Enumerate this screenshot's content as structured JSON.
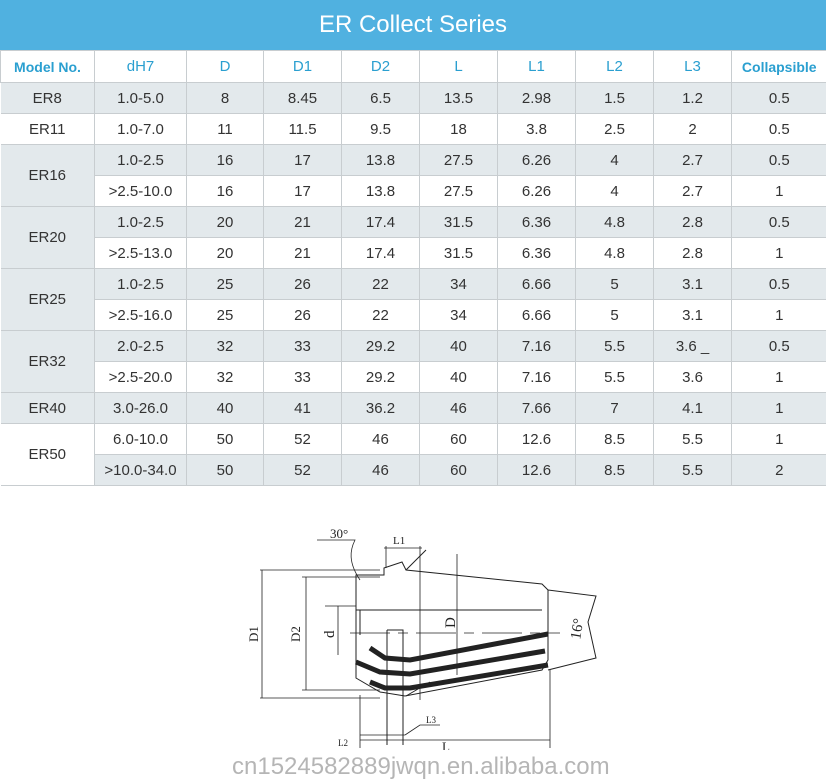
{
  "title": "ER Collect Series",
  "columns": [
    "Model No.",
    "dH7",
    "D",
    "D1",
    "D2",
    "L",
    "L1",
    "L2",
    "L3",
    "Collapsible"
  ],
  "groups": [
    {
      "model": "ER8",
      "rows": [
        [
          "1.0-5.0",
          "8",
          "8.45",
          "6.5",
          "13.5",
          "2.98",
          "1.5",
          "1.2",
          "0.5"
        ]
      ]
    },
    {
      "model": "ER11",
      "rows": [
        [
          "1.0-7.0",
          "11",
          "11.5",
          "9.5",
          "18",
          "3.8",
          "2.5",
          "2",
          "0.5"
        ]
      ]
    },
    {
      "model": "ER16",
      "rows": [
        [
          "1.0-2.5",
          "16",
          "17",
          "13.8",
          "27.5",
          "6.26",
          "4",
          "2.7",
          "0.5"
        ],
        [
          ">2.5-10.0",
          "16",
          "17",
          "13.8",
          "27.5",
          "6.26",
          "4",
          "2.7",
          "1"
        ]
      ]
    },
    {
      "model": "ER20",
      "rows": [
        [
          "1.0-2.5",
          "20",
          "21",
          "17.4",
          "31.5",
          "6.36",
          "4.8",
          "2.8",
          "0.5"
        ],
        [
          ">2.5-13.0",
          "20",
          "21",
          "17.4",
          "31.5",
          "6.36",
          "4.8",
          "2.8",
          "1"
        ]
      ]
    },
    {
      "model": "ER25",
      "rows": [
        [
          "1.0-2.5",
          "25",
          "26",
          "22",
          "34",
          "6.66",
          "5",
          "3.1",
          "0.5"
        ],
        [
          ">2.5-16.0",
          "25",
          "26",
          "22",
          "34",
          "6.66",
          "5",
          "3.1",
          "1"
        ]
      ]
    },
    {
      "model": "ER32",
      "rows": [
        [
          "2.0-2.5",
          "32",
          "33",
          "29.2",
          "40",
          "7.16",
          "5.5",
          "3.6 _",
          "0.5"
        ],
        [
          ">2.5-20.0",
          "32",
          "33",
          "29.2",
          "40",
          "7.16",
          "5.5",
          "3.6",
          "1"
        ]
      ]
    },
    {
      "model": "ER40",
      "rows": [
        [
          "3.0-26.0",
          "40",
          "41",
          "36.2",
          "46",
          "7.66",
          "7",
          "4.1",
          "1"
        ]
      ]
    },
    {
      "model": "ER50",
      "rows": [
        [
          "6.0-10.0",
          "50",
          "52",
          "46",
          "60",
          "12.6",
          "8.5",
          "5.5",
          "1"
        ],
        [
          ">10.0-34.0",
          "50",
          "52",
          "46",
          "60",
          "12.6",
          "8.5",
          "5.5",
          "2"
        ]
      ]
    }
  ],
  "diagram": {
    "labels": {
      "angle30": "30°",
      "angle16": "16°",
      "L1": "L1",
      "L2": "L2",
      "L3": "L3",
      "L": "L",
      "D": "D",
      "D1": "D1",
      "D2": "D2",
      "d": "d"
    }
  },
  "watermark": "cn1524582889jwqn.en.alibaba.com",
  "colors": {
    "header": "#50b1e0",
    "header_text": "#2a9fd0",
    "row_alt": "#e3e9ec"
  }
}
